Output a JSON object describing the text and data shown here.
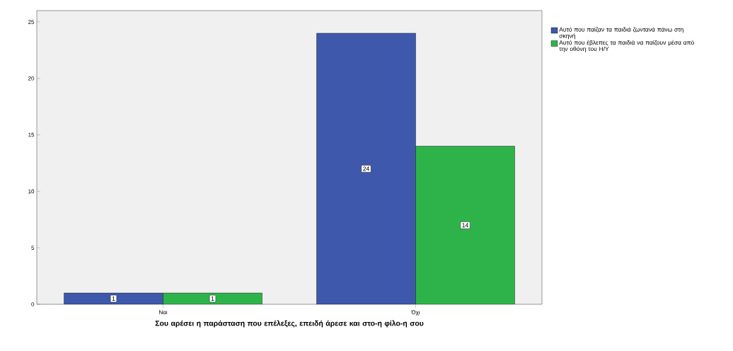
{
  "chart_data": {
    "type": "bar",
    "xlabel": "Σου αρέσει η παράσταση που επέλεξες, επειδή άρεσε και στο-η φίλο-η σου",
    "categories": [
      "Ναι",
      "Όχι"
    ],
    "series": [
      {
        "name": "Αυτό που παίζαν τα παιδιά ζωντανά πάνω στη σκηνή",
        "color": "#3e58ac",
        "values": [
          1,
          24
        ]
      },
      {
        "name": "Αυτό που έβλεπες τα παιδιά να παίζουν μέσα από την οθόνη του Η/Υ",
        "color": "#2eb34a",
        "values": [
          1,
          14
        ]
      }
    ],
    "ylim": [
      0,
      26
    ],
    "yticks": [
      0,
      5,
      10,
      15,
      20,
      25
    ],
    "data_labels": true,
    "grid": false,
    "legend": "right"
  }
}
